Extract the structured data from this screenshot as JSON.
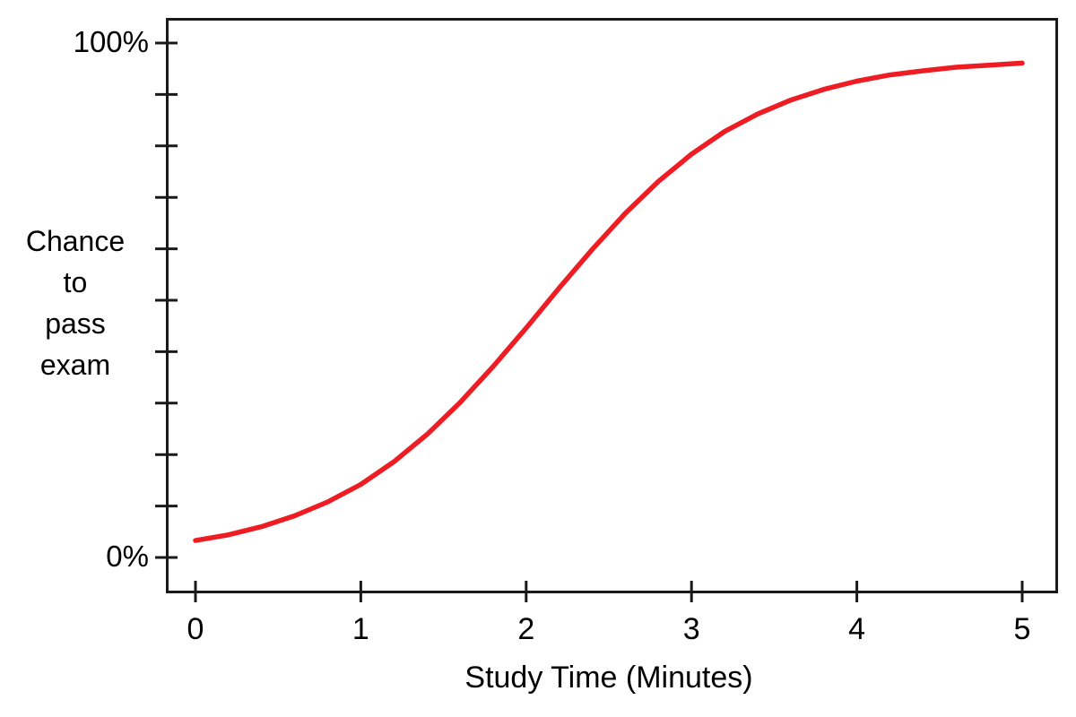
{
  "chart_data": {
    "type": "line",
    "title": "",
    "xlabel": "Study Time (Minutes)",
    "ylabel": "Chance to pass exam",
    "ylabel_lines": [
      "Chance",
      "to",
      "pass",
      "exam"
    ],
    "xlim": [
      0,
      5
    ],
    "ylim": [
      0,
      100
    ],
    "x_ticks": [
      0,
      1,
      2,
      3,
      4,
      5
    ],
    "x_tick_labels": [
      "0",
      "1",
      "2",
      "3",
      "4",
      "5"
    ],
    "y_ticks": [
      0,
      10,
      20,
      30,
      40,
      50,
      60,
      70,
      80,
      90,
      100
    ],
    "y_axis": {
      "min_label": "0%",
      "max_label": "100%"
    },
    "grid": false,
    "legend": "none",
    "axis_color": "#1a1a1a",
    "series": [
      {
        "name": "chance-to-pass-exam",
        "color": "#ee1c23",
        "x": [
          0,
          0.2,
          0.4,
          0.6,
          0.8,
          1.0,
          1.2,
          1.4,
          1.6,
          1.8,
          2.0,
          2.2,
          2.4,
          2.6,
          2.8,
          3.0,
          3.2,
          3.4,
          3.6,
          3.8,
          4.0,
          4.2,
          4.4,
          4.6,
          4.8,
          5.0
        ],
        "y": [
          3.3,
          4.4,
          6.0,
          8.1,
          10.8,
          14.2,
          18.6,
          23.9,
          30.1,
          37.1,
          44.6,
          52.4,
          59.9,
          66.9,
          73.1,
          78.4,
          82.8,
          86.2,
          88.9,
          91.0,
          92.6,
          93.8,
          94.6,
          95.3,
          95.7,
          96.1
        ]
      }
    ]
  }
}
